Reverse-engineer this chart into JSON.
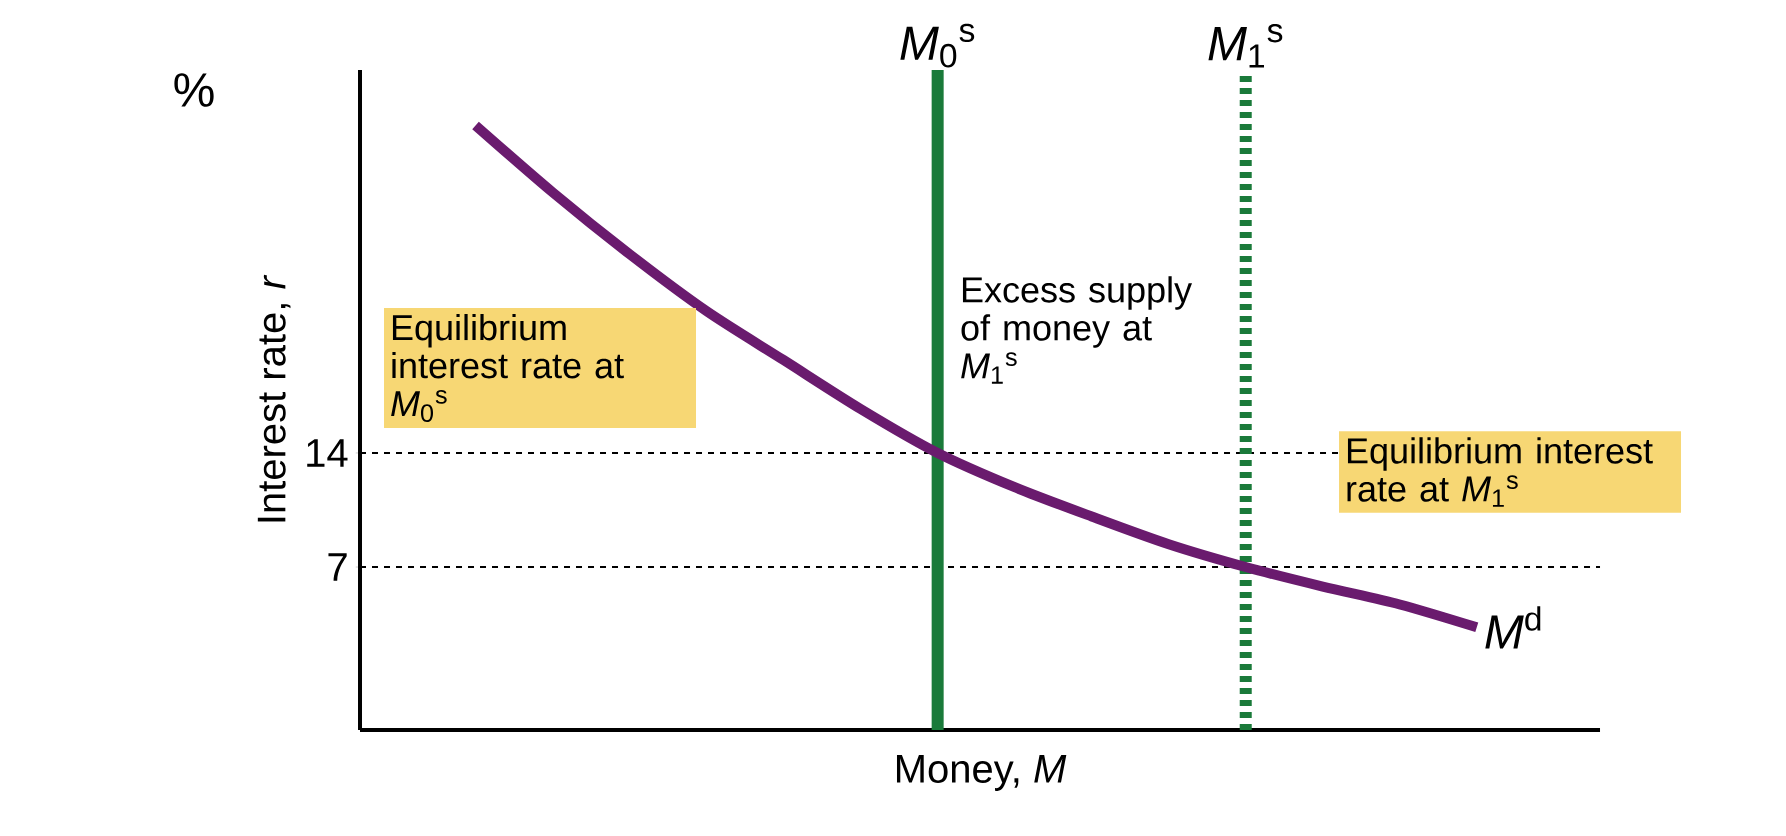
{
  "chart_data": {
    "type": "line",
    "xlabel": "Money, *M*",
    "ylabel": "Interest rate, *r*",
    "categories": [
      null,
      null,
      null,
      null,
      null,
      null,
      null,
      null,
      null,
      null,
      null,
      null,
      null,
      null
    ],
    "series": [
      {
        "name": "*M*$^{d}$",
        "color": "#6a1b6e",
        "values": [
          34.1,
          30.0,
          26.2,
          22.7,
          19.7,
          16.7,
          14,
          11.9,
          10.1,
          8.4,
          7,
          5.8,
          4.7,
          3.3
        ]
      }
    ],
    "ylim": [
      -3,
      37.5
    ],
    "yticks": [
      7,
      14
    ],
    "ref_lines": [
      {
        "axis": "y",
        "value": 14,
        "color": "#000000",
        "line_style": "dashed"
      },
      {
        "axis": "y",
        "value": 7,
        "color": "#000000",
        "line_style": "dashed"
      }
    ],
    "annotations": [
      "%",
      "Equilibrium interest rate at *M*$_{0}$$^{s}$",
      "Excess supply of money at *M*$_{1}$$^{s}$",
      "Equilibrium interest rate at *M*$_{1}$$^{s}$",
      "*M*$_{0}$$^{s}$",
      "*M*$_{1}$$^{s}$"
    ]
  }
}
